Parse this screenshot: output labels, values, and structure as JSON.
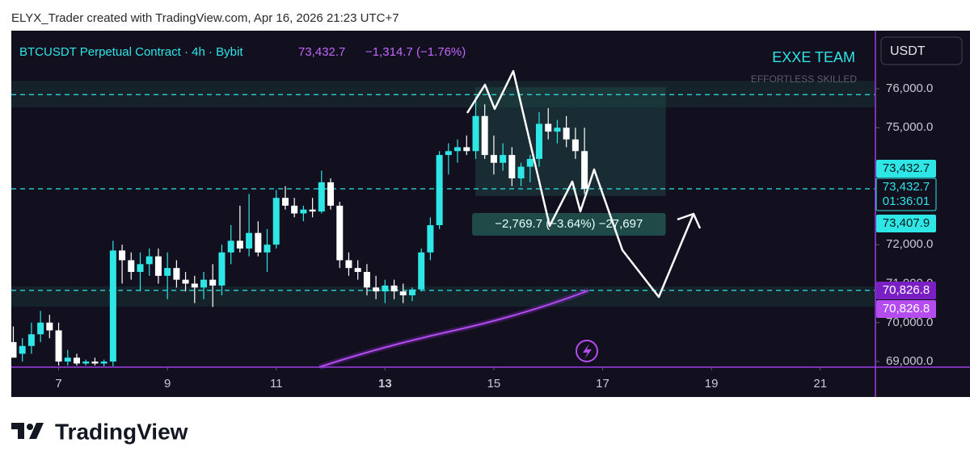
{
  "header": "ELYX_Trader created with TradingView.com, Apr 16, 2026 21:23 UTC+7",
  "brand": "TradingView",
  "chart_data": {
    "type": "candlestick",
    "legend": {
      "symbol": "BTCUSDT Perpetual Contract · 4h · Bybit",
      "price": "73,432.7",
      "change": "−1,314.7 (−1.76%)"
    },
    "watermark": {
      "title": "EXXE TEAM",
      "subtitle": "EFFORTLESS SKILLED"
    },
    "currency": "USDT",
    "x": [
      6.167,
      6.333,
      6.5,
      6.667,
      6.833,
      7,
      7.167,
      7.333,
      7.5,
      7.667,
      7.833,
      8,
      8.167,
      8.333,
      8.5,
      8.667,
      8.833,
      9,
      9.167,
      9.333,
      9.5,
      9.667,
      9.833,
      10,
      10.167,
      10.333,
      10.5,
      10.667,
      10.833,
      11,
      11.167,
      11.333,
      11.5,
      11.667,
      11.833,
      12,
      12.167,
      12.333,
      12.5,
      12.667,
      12.833,
      13,
      13.167,
      13.333,
      13.5,
      13.667,
      13.833,
      14,
      14.167,
      14.333,
      14.5,
      14.667,
      14.833,
      15,
      15.167,
      15.333,
      15.5,
      15.667,
      15.833,
      16,
      16.167,
      16.333,
      16.5,
      16.667
    ],
    "open": [
      69500,
      69200,
      69400,
      69700,
      70000,
      69800,
      69000,
      69100,
      68950,
      69000,
      68950,
      69000,
      71850,
      71600,
      71300,
      71500,
      71700,
      71200,
      71400,
      71100,
      71000,
      70900,
      71100,
      70950,
      71800,
      72100,
      71900,
      72300,
      71800,
      72000,
      73200,
      73000,
      72800,
      72900,
      72850,
      73600,
      73000,
      71600,
      71400,
      71300,
      70900,
      70800,
      70950,
      70800,
      70700,
      70850,
      71800,
      72500,
      74300,
      74400,
      74500,
      74400,
      75300,
      74300,
      74100,
      74300,
      73700,
      74000,
      74200,
      75100,
      74900,
      75000,
      74700,
      74400
    ],
    "high": [
      69900,
      69600,
      70000,
      70300,
      70200,
      70000,
      69300,
      69200,
      69050,
      69100,
      69050,
      72100,
      72000,
      71800,
      71800,
      71900,
      71900,
      71800,
      71600,
      71300,
      71200,
      71300,
      71500,
      72000,
      72500,
      73000,
      73300,
      72600,
      72400,
      73400,
      73500,
      73200,
      73000,
      73200,
      73900,
      73700,
      73100,
      71800,
      71600,
      71500,
      71200,
      71100,
      71100,
      71000,
      70900,
      71900,
      72700,
      74400,
      74600,
      74700,
      74800,
      75800,
      75600,
      74800,
      74600,
      74500,
      74100,
      74300,
      75400,
      75500,
      75200,
      75300,
      75000,
      75000
    ],
    "low": [
      69100,
      69000,
      69200,
      69500,
      69600,
      68900,
      68900,
      68900,
      68900,
      68900,
      68880,
      68880,
      71000,
      71100,
      70800,
      71200,
      71000,
      70600,
      70900,
      70800,
      70500,
      70600,
      70400,
      70700,
      71500,
      71800,
      71700,
      71700,
      71300,
      71900,
      72900,
      72700,
      72600,
      72700,
      72800,
      72900,
      71400,
      71200,
      71100,
      70700,
      70600,
      70500,
      70600,
      70500,
      70550,
      70800,
      71600,
      72400,
      73800,
      74100,
      74300,
      74200,
      74200,
      73800,
      73900,
      73500,
      73500,
      73600,
      74000,
      74700,
      74600,
      74500,
      74200,
      73300
    ],
    "close": [
      69100,
      69400,
      69700,
      70000,
      69800,
      69000,
      69100,
      68950,
      69000,
      68950,
      69000,
      71850,
      71600,
      71300,
      71500,
      71700,
      71200,
      71400,
      71100,
      71000,
      70900,
      71100,
      70950,
      71800,
      72100,
      71900,
      72300,
      71800,
      72000,
      73200,
      73000,
      72800,
      72900,
      72850,
      73600,
      73000,
      71600,
      71400,
      71300,
      70900,
      70800,
      70950,
      70800,
      70700,
      70850,
      71800,
      72500,
      74300,
      74400,
      74500,
      74400,
      75300,
      74300,
      74100,
      74300,
      73700,
      74000,
      74200,
      75100,
      74900,
      75000,
      74700,
      74400,
      73432.7
    ],
    "up_color": "#2ee6e6",
    "down_color": "#ffffff",
    "xlim": [
      6.13,
      22.0
    ],
    "xticks": [
      7,
      9,
      11,
      13,
      15,
      17,
      19,
      21
    ],
    "ylim": [
      68857,
      77490
    ],
    "yticks": [
      {
        "value": 69000,
        "label": "69,000.0"
      },
      {
        "value": 70000,
        "label": "70,000.0"
      },
      {
        "value": 71000,
        "label": "71,000.0"
      },
      {
        "value": 72000,
        "label": "72,000.0"
      },
      {
        "value": 75000,
        "label": "75,000.0"
      },
      {
        "value": 76000,
        "label": "76,000.0"
      }
    ],
    "hlines": [
      75850,
      73432.7,
      70826.8
    ],
    "zones": [
      [
        75520,
        76200
      ],
      [
        70410,
        70930
      ]
    ],
    "box": {
      "x": [
        14.66,
        18.16
      ],
      "y": [
        73250,
        76040
      ],
      "label": "−2,769.7 (−3.64%) −27,697"
    },
    "badges": [
      {
        "value": 73432.7,
        "label": "73,432.7"
      },
      {
        "value": 73432.7,
        "label": "73,432.7",
        "timer": "01:36:01"
      },
      {
        "value": 73407.9,
        "label": "73,407.9"
      },
      {
        "value": 70826.8,
        "label": "70,826.8"
      },
      {
        "value": 70826.8,
        "label": "70,826.8"
      }
    ]
  }
}
